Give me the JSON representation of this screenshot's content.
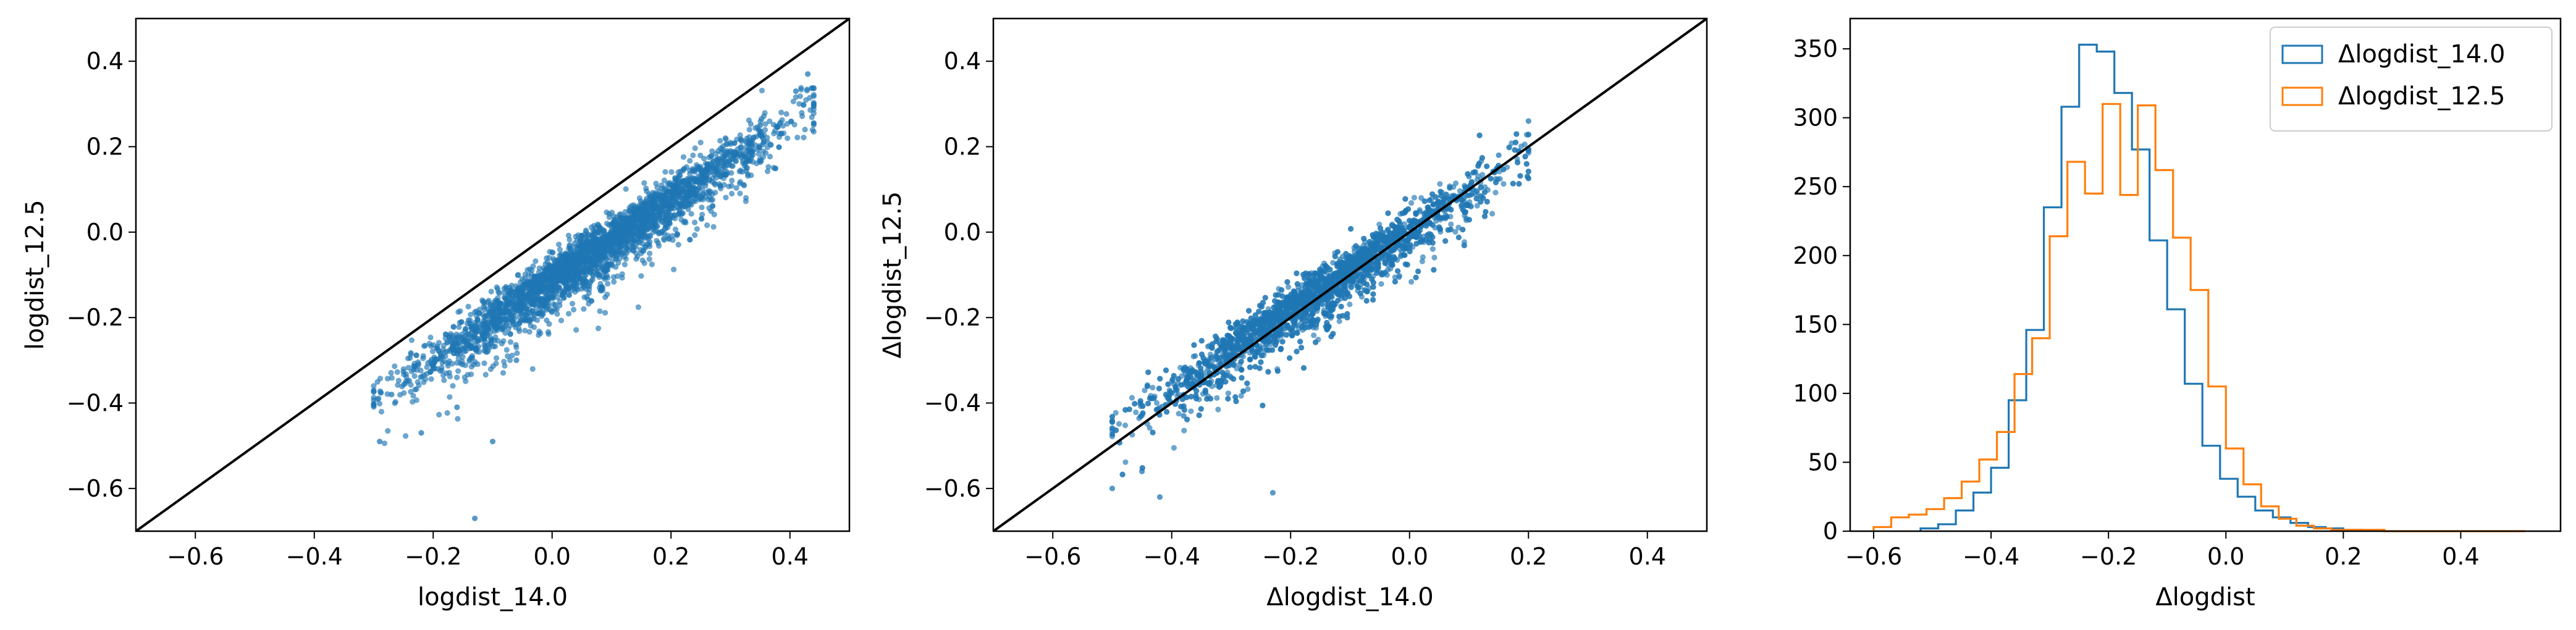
{
  "chart_data": [
    {
      "type": "scatter",
      "xlabel": "logdist_14.0",
      "ylabel": "logdist_12.5",
      "xlim": [
        -0.7,
        0.5
      ],
      "ylim": [
        -0.7,
        0.5
      ],
      "xticks": [
        -0.6,
        -0.4,
        -0.2,
        0.0,
        0.2,
        0.4
      ],
      "yticks": [
        -0.6,
        -0.4,
        -0.2,
        0.0,
        0.2,
        0.4
      ],
      "xtick_labels": [
        "−0.6",
        "−0.4",
        "−0.2",
        "0.0",
        "0.2",
        "0.4"
      ],
      "ytick_labels": [
        "−0.6",
        "−0.4",
        "−0.2",
        "0.0",
        "0.2",
        "0.4"
      ],
      "reference_line": "y = x",
      "point_color": "#1f77b4",
      "trend": {
        "slope": 0.93,
        "intercept": -0.104,
        "x_range": [
          -0.3,
          0.44
        ],
        "n_points": 3000
      },
      "points_sample": [
        [
          -0.29,
          -0.49
        ],
        [
          -0.27,
          -0.38
        ],
        [
          -0.22,
          -0.47
        ],
        [
          -0.2,
          -0.32
        ],
        [
          -0.16,
          -0.41
        ],
        [
          -0.13,
          -0.67
        ],
        [
          -0.1,
          -0.49
        ],
        [
          -0.06,
          -0.3
        ],
        [
          0.0,
          -0.15
        ],
        [
          0.05,
          -0.07
        ],
        [
          0.1,
          -0.03
        ],
        [
          0.15,
          0.04
        ],
        [
          0.2,
          0.08
        ],
        [
          0.25,
          0.13
        ],
        [
          0.3,
          0.19
        ],
        [
          0.35,
          0.25
        ],
        [
          0.41,
          0.33
        ],
        [
          0.43,
          0.37
        ]
      ]
    },
    {
      "type": "scatter",
      "xlabel": "Δlogdist_14.0",
      "ylabel": "Δlogdist_12.5",
      "xlim": [
        -0.7,
        0.5
      ],
      "ylim": [
        -0.7,
        0.5
      ],
      "xticks": [
        -0.6,
        -0.4,
        -0.2,
        0.0,
        0.2,
        0.4
      ],
      "yticks": [
        -0.6,
        -0.4,
        -0.2,
        0.0,
        0.2,
        0.4
      ],
      "xtick_labels": [
        "−0.6",
        "−0.4",
        "−0.2",
        "0.0",
        "0.2",
        "0.4"
      ],
      "ytick_labels": [
        "−0.6",
        "−0.4",
        "−0.2",
        "0.0",
        "0.2",
        "0.4"
      ],
      "reference_line": "y = x",
      "point_color": "#1f77b4",
      "trend": {
        "slope": 0.93,
        "intercept": 0.01,
        "x_range": [
          -0.5,
          0.2
        ],
        "n_points": 3000
      },
      "points_sample": [
        [
          -0.5,
          -0.6
        ],
        [
          -0.45,
          -0.56
        ],
        [
          -0.42,
          -0.62
        ],
        [
          -0.38,
          -0.43
        ],
        [
          -0.3,
          -0.34
        ],
        [
          -0.23,
          -0.61
        ],
        [
          -0.2,
          -0.2
        ],
        [
          -0.15,
          -0.14
        ],
        [
          -0.1,
          -0.08
        ],
        [
          -0.05,
          -0.04
        ],
        [
          0.0,
          0.01
        ],
        [
          0.05,
          0.07
        ],
        [
          0.1,
          0.13
        ],
        [
          0.15,
          0.18
        ],
        [
          0.2,
          0.26
        ]
      ]
    },
    {
      "type": "histogram",
      "xlabel": "Δlogdist",
      "ylabel": "",
      "xlim": [
        -0.64,
        0.57
      ],
      "ylim": [
        0,
        372
      ],
      "xticks": [
        -0.6,
        -0.4,
        -0.2,
        0.0,
        0.2,
        0.4
      ],
      "yticks": [
        0,
        50,
        100,
        150,
        200,
        250,
        300,
        350
      ],
      "xtick_labels": [
        "−0.6",
        "−0.4",
        "−0.2",
        "0.0",
        "0.2",
        "0.4"
      ],
      "ytick_labels": [
        "0",
        "50",
        "100",
        "150",
        "200",
        "250",
        "300",
        "350"
      ],
      "legend_position": "top-right",
      "series": [
        {
          "name": "Δlogdist_14.0",
          "color": "#1f77b4",
          "bin_edges": [
            -0.52,
            -0.49,
            -0.46,
            -0.43,
            -0.4,
            -0.37,
            -0.34,
            -0.31,
            -0.28,
            -0.25,
            -0.22,
            -0.19,
            -0.16,
            -0.13,
            -0.1,
            -0.07,
            -0.04,
            -0.01,
            0.02,
            0.05,
            0.08,
            0.11,
            0.14,
            0.17,
            0.2,
            0.23
          ],
          "counts": [
            2,
            5,
            15,
            28,
            46,
            95,
            146,
            235,
            308,
            353,
            348,
            318,
            277,
            211,
            161,
            107,
            62,
            38,
            25,
            15,
            10,
            6,
            3,
            2,
            1
          ]
        },
        {
          "name": "Δlogdist_12.5",
          "color": "#ff7f0e",
          "bin_edges": [
            -0.6,
            -0.57,
            -0.54,
            -0.51,
            -0.48,
            -0.45,
            -0.42,
            -0.39,
            -0.36,
            -0.33,
            -0.3,
            -0.27,
            -0.24,
            -0.21,
            -0.18,
            -0.15,
            -0.12,
            -0.09,
            -0.06,
            -0.03,
            0.0,
            0.03,
            0.06,
            0.09,
            0.12,
            0.15,
            0.18,
            0.21,
            0.24,
            0.27,
            0.3,
            0.33,
            0.36,
            0.39,
            0.42,
            0.45,
            0.48,
            0.51
          ],
          "counts": [
            3,
            10,
            12,
            16,
            24,
            36,
            52,
            72,
            114,
            140,
            214,
            268,
            245,
            310,
            244,
            309,
            262,
            213,
            175,
            105,
            60,
            34,
            18,
            9,
            4,
            2,
            1,
            1,
            1,
            0,
            0,
            0,
            0,
            0,
            0,
            0,
            0
          ]
        }
      ]
    }
  ]
}
